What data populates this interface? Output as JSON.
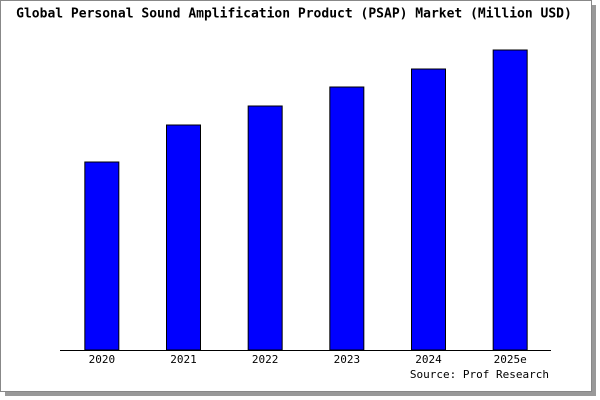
{
  "chart_data": {
    "type": "bar",
    "title": "Global Personal Sound Amplification Product (PSAP) Market (Million USD)",
    "categories": [
      "2020",
      "2021",
      "2022",
      "2023",
      "2024",
      "2025e"
    ],
    "values": [
      188,
      225,
      244,
      263,
      281,
      300
    ],
    "color": "#0000ff",
    "source": "Source: Prof Research"
  }
}
